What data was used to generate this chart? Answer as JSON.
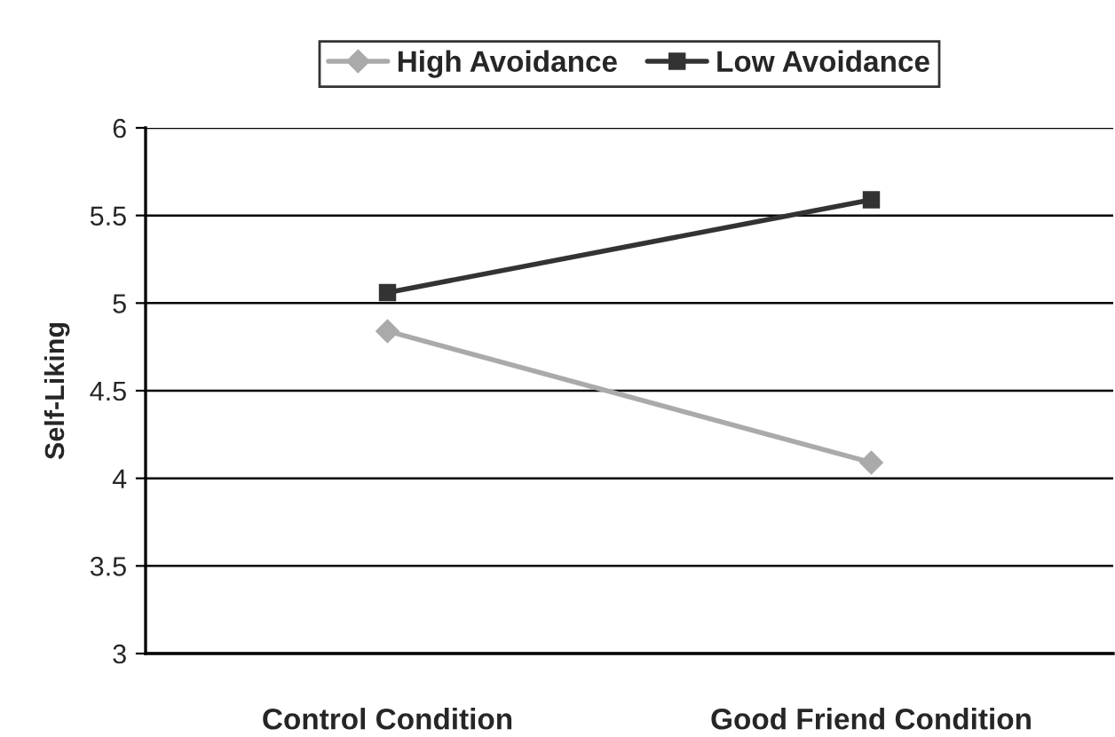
{
  "chart_data": {
    "type": "line",
    "ylabel": "Self-Liking",
    "categories": [
      "Control Condition",
      "Good Friend Condition"
    ],
    "series": [
      {
        "name": "High Avoidance",
        "color": "#aaaaaa",
        "marker": "diamond",
        "values": [
          4.84,
          4.09
        ]
      },
      {
        "name": "Low Avoidance",
        "color": "#333333",
        "marker": "square",
        "values": [
          5.06,
          5.59
        ]
      }
    ],
    "ylim": [
      3,
      6
    ],
    "yticks": [
      3,
      3.5,
      4,
      4.5,
      5,
      5.5,
      6
    ],
    "grid": "y",
    "legend": "top",
    "line_style": "solid"
  }
}
